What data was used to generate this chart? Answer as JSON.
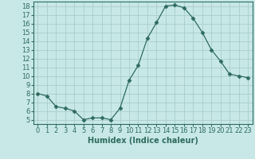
{
  "x": [
    0,
    1,
    2,
    3,
    4,
    5,
    6,
    7,
    8,
    9,
    10,
    11,
    12,
    13,
    14,
    15,
    16,
    17,
    18,
    19,
    20,
    21,
    22,
    23
  ],
  "y": [
    8.0,
    7.7,
    6.5,
    6.3,
    6.0,
    5.0,
    5.2,
    5.2,
    5.0,
    6.3,
    9.5,
    11.2,
    14.3,
    16.1,
    18.0,
    18.1,
    17.8,
    16.6,
    15.0,
    13.0,
    11.7,
    10.2,
    10.0,
    9.8
  ],
  "line_color": "#2e6b5e",
  "marker": "D",
  "marker_size": 2.5,
  "bg_color": "#c8e8e8",
  "grid_color": "#aacccc",
  "tick_color": "#2e6b5e",
  "xlabel": "Humidex (Indice chaleur)",
  "xlim": [
    -0.5,
    23.5
  ],
  "ylim": [
    4.5,
    18.5
  ],
  "yticks": [
    5,
    6,
    7,
    8,
    9,
    10,
    11,
    12,
    13,
    14,
    15,
    16,
    17,
    18
  ],
  "xticks": [
    0,
    1,
    2,
    3,
    4,
    5,
    6,
    7,
    8,
    9,
    10,
    11,
    12,
    13,
    14,
    15,
    16,
    17,
    18,
    19,
    20,
    21,
    22,
    23
  ],
  "font_size": 6,
  "label_font_size": 7
}
